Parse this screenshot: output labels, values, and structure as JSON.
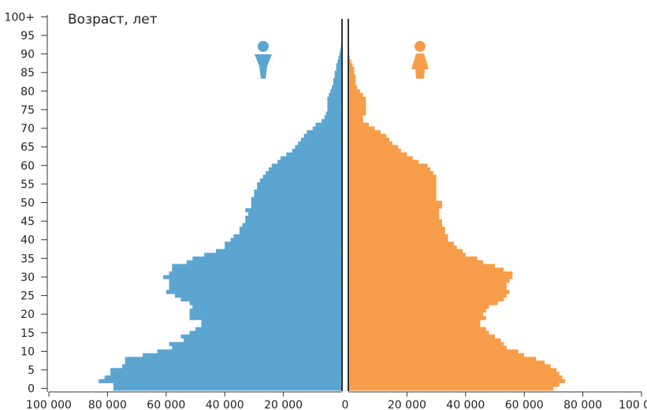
{
  "chart_data": {
    "type": "bar",
    "orientation": "horizontal",
    "layout": "population pyramid",
    "ylabel": "Возраст, лет",
    "x_tick_labels": [
      "100 000",
      "80 000",
      "60 000",
      "40 000",
      "20 000",
      "0",
      "20 000",
      "40 000",
      "60 000",
      "80 000",
      "100 000"
    ],
    "y_tick_labels": [
      "0",
      "5",
      "10",
      "15",
      "20",
      "25",
      "30",
      "35",
      "40",
      "45",
      "50",
      "55",
      "60",
      "65",
      "70",
      "75",
      "80",
      "85",
      "90",
      "95",
      "100+"
    ],
    "xlim": [
      0,
      100000
    ],
    "ages": [
      0,
      1,
      2,
      3,
      4,
      5,
      6,
      7,
      8,
      9,
      10,
      11,
      12,
      13,
      14,
      15,
      16,
      17,
      18,
      19,
      20,
      21,
      22,
      23,
      24,
      25,
      26,
      27,
      28,
      29,
      30,
      31,
      32,
      33,
      34,
      35,
      36,
      37,
      38,
      39,
      40,
      41,
      42,
      43,
      44,
      45,
      46,
      47,
      48,
      49,
      50,
      51,
      52,
      53,
      54,
      55,
      56,
      57,
      58,
      59,
      60,
      61,
      62,
      63,
      64,
      65,
      66,
      67,
      68,
      69,
      70,
      71,
      72,
      73,
      74,
      75,
      76,
      77,
      78,
      79,
      80,
      81,
      82,
      83,
      84,
      85,
      86,
      87,
      88,
      89,
      90,
      91,
      92,
      93,
      94,
      95,
      96,
      97,
      98,
      99,
      100
    ],
    "series": [
      {
        "side": "left",
        "values": [
          78000,
          78000,
          83000,
          81000,
          79000,
          79000,
          75000,
          74000,
          74000,
          68000,
          63000,
          58000,
          59000,
          54000,
          55000,
          52000,
          50000,
          48000,
          48000,
          52000,
          52000,
          52000,
          51000,
          52000,
          55000,
          57000,
          60000,
          59000,
          59000,
          59000,
          61000,
          59000,
          58000,
          58000,
          53000,
          51000,
          47000,
          43000,
          40000,
          40000,
          38000,
          37000,
          35000,
          35000,
          34000,
          33000,
          33000,
          32000,
          33000,
          31000,
          31000,
          31000,
          30000,
          30000,
          29000,
          29000,
          28000,
          27000,
          26000,
          25000,
          24000,
          22000,
          21000,
          19000,
          17000,
          16000,
          15000,
          14000,
          13000,
          12000,
          10000,
          9000,
          7000,
          6000,
          5500,
          5000,
          5000,
          5000,
          5000,
          4500,
          4000,
          3500,
          3000,
          3000,
          2500,
          2500,
          2000,
          2000,
          1500,
          1200,
          900,
          600,
          400,
          250,
          150,
          100,
          60,
          40,
          20,
          10,
          10
        ]
      },
      {
        "side": "right",
        "values": [
          70000,
          72000,
          74000,
          73000,
          72000,
          71000,
          69000,
          67000,
          64000,
          60000,
          58000,
          54000,
          53000,
          52000,
          50000,
          48000,
          47000,
          45000,
          45000,
          47000,
          46000,
          47000,
          48000,
          51000,
          53000,
          54000,
          55000,
          54000,
          54000,
          55000,
          56000,
          56000,
          53000,
          50000,
          46000,
          44000,
          40000,
          39000,
          37000,
          36000,
          34000,
          34000,
          33000,
          33000,
          32000,
          32000,
          31000,
          31000,
          31000,
          32000,
          32000,
          30000,
          30000,
          30000,
          30000,
          30000,
          30000,
          30000,
          29000,
          28000,
          27000,
          24000,
          22000,
          20000,
          18000,
          17000,
          15000,
          14000,
          13000,
          11000,
          9000,
          7000,
          5000,
          5000,
          6000,
          6000,
          6000,
          6000,
          6000,
          5000,
          4000,
          3000,
          2500,
          2500,
          2500,
          2000,
          2000,
          1500,
          1000,
          500,
          300,
          150,
          80,
          50,
          40,
          30,
          20,
          10,
          10,
          5,
          5
        ]
      }
    ],
    "colors": {
      "left": "#5ba6d0",
      "right": "#f79d4a",
      "axis": "#333333"
    },
    "icons": {
      "left": "male-icon",
      "right": "female-icon"
    }
  }
}
